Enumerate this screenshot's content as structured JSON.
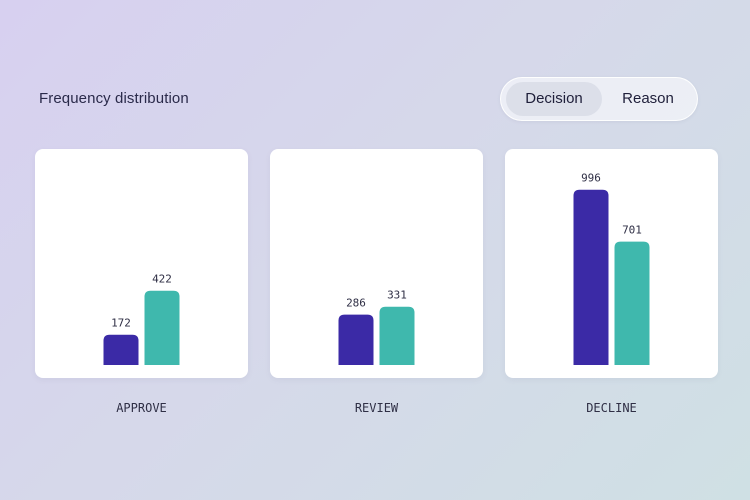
{
  "header": {
    "title": "Frequency distribution",
    "toggle": {
      "options": [
        "Decision",
        "Reason"
      ],
      "selected": "Decision"
    }
  },
  "colors": {
    "series_a": "#3b2aa6",
    "series_b": "#3fb8ad",
    "card_bg": "#ffffff"
  },
  "chart_data": {
    "type": "bar",
    "title": "Frequency distribution",
    "categories": [
      "APPROVE",
      "REVIEW",
      "DECLINE"
    ],
    "series": [
      {
        "values": [
          172,
          286,
          996
        ]
      },
      {
        "values": [
          422,
          331,
          701
        ]
      }
    ],
    "ylim": [
      0,
      1000
    ],
    "grid": false,
    "legend": "none"
  }
}
